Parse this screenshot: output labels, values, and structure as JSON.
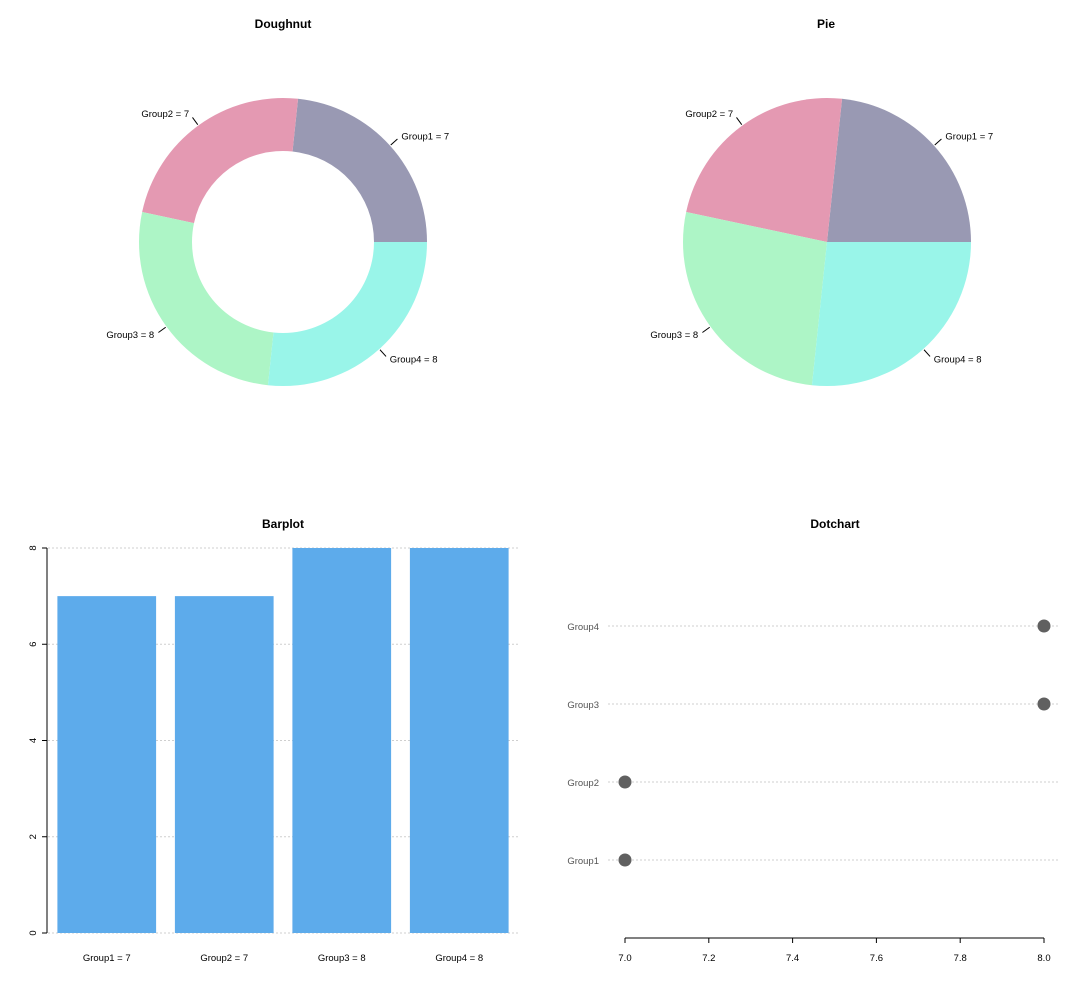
{
  "palette": {
    "group1": "#9999B3",
    "group2": "#E499B2",
    "group3": "#ADF5C6",
    "group4": "#99F5E9",
    "bar": "#5DABEB",
    "dot": "#606060",
    "grid": "#cfcfcf"
  },
  "chart_data": [
    {
      "type": "pie",
      "variant": "doughnut",
      "title": "Doughnut",
      "categories": [
        "Group1",
        "Group2",
        "Group3",
        "Group4"
      ],
      "values": [
        7,
        7,
        8,
        8
      ],
      "labels": [
        "Group1 = 7",
        "Group2 = 7",
        "Group3 = 8",
        "Group4 = 8"
      ],
      "start": "3 o'clock",
      "direction": "counter-clockwise"
    },
    {
      "type": "pie",
      "title": "Pie",
      "categories": [
        "Group1",
        "Group2",
        "Group3",
        "Group4"
      ],
      "values": [
        7,
        7,
        8,
        8
      ],
      "labels": [
        "Group1 = 7",
        "Group2 = 7",
        "Group3 = 8",
        "Group4 = 8"
      ],
      "start": "3 o'clock",
      "direction": "counter-clockwise"
    },
    {
      "type": "bar",
      "title": "Barplot",
      "categories": [
        "Group1 = 7",
        "Group2 = 7",
        "Group3 = 8",
        "Group4 = 8"
      ],
      "values": [
        7,
        7,
        8,
        8
      ],
      "ylim": [
        0,
        8
      ],
      "yticks": [
        0,
        2,
        4,
        6,
        8
      ],
      "grid": true
    },
    {
      "type": "scatter",
      "variant": "dotchart",
      "title": "Dotchart",
      "categories": [
        "Group1",
        "Group2",
        "Group3",
        "Group4"
      ],
      "values": [
        7,
        7,
        8,
        8
      ],
      "xlim": [
        7,
        8
      ],
      "xticks": [
        "7.0",
        "7.2",
        "7.4",
        "7.6",
        "7.8",
        "8.0"
      ],
      "grid": true
    }
  ]
}
